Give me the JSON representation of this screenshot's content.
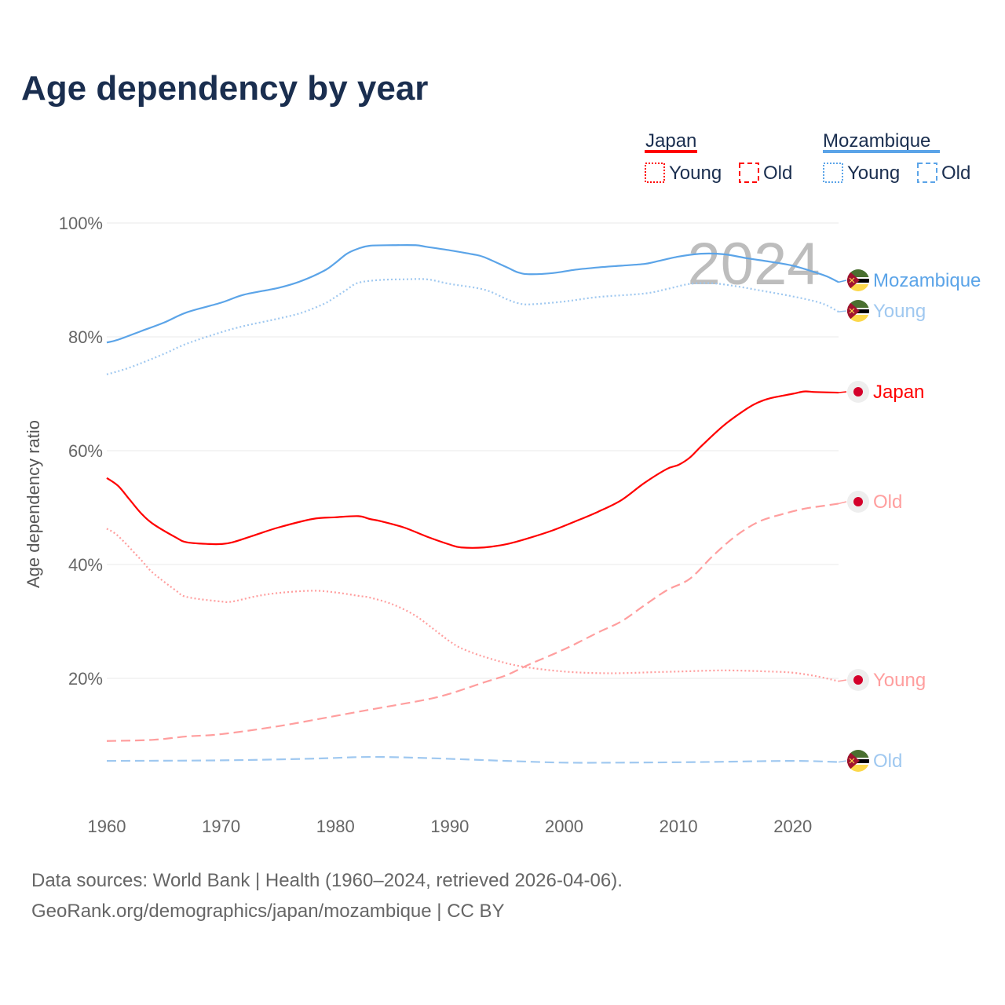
{
  "title": "Age dependency by year",
  "sources": {
    "line1": "Data sources: World Bank | Health (1960–2024, retrieved 2026-04-06).",
    "line2": "GeoRank.org/demographics/japan/mozambique | CC BY"
  },
  "year_watermark": "2024",
  "legend": {
    "groups": [
      {
        "country": "Japan",
        "color": "#ff0000",
        "young": "Young",
        "old": "Old"
      },
      {
        "country": "Mozambique",
        "color": "#5ba4e8",
        "young": "Young",
        "old": "Old"
      }
    ]
  },
  "end_labels": {
    "moz_total": "Mozambique",
    "moz_young": "Young",
    "japan_total": "Japan",
    "japan_old": "Old",
    "japan_young": "Young",
    "moz_old": "Old"
  },
  "chart_data": {
    "type": "line",
    "title": "Age dependency by year",
    "xlabel": "",
    "ylabel": "Age dependency ratio",
    "xlim": [
      1960,
      2024
    ],
    "ylim": [
      0,
      100
    ],
    "xticks": [
      "1960",
      "1970",
      "1980",
      "1990",
      "2000",
      "2010",
      "2020"
    ],
    "yticks": [
      "20%",
      "40%",
      "60%",
      "80%",
      "100%"
    ],
    "grid": true,
    "legend_position": "top-right",
    "series": [
      {
        "name": "Mozambique",
        "key": "moz_total",
        "color": "#5ba4e8",
        "dash": "solid",
        "points": [
          [
            1960,
            79.0
          ],
          [
            1961,
            79.5
          ],
          [
            1963,
            81
          ],
          [
            1965,
            82.5
          ],
          [
            1967,
            84.3
          ],
          [
            1970,
            86
          ],
          [
            1972,
            87.4
          ],
          [
            1975,
            88.6
          ],
          [
            1977,
            89.8
          ],
          [
            1979,
            91.6
          ],
          [
            1980,
            93
          ],
          [
            1981,
            94.6
          ],
          [
            1982,
            95.5
          ],
          [
            1983,
            96.0
          ],
          [
            1985,
            96.1
          ],
          [
            1987,
            96.1
          ],
          [
            1988,
            95.8
          ],
          [
            1990,
            95.2
          ],
          [
            1992,
            94.5
          ],
          [
            1993,
            94
          ],
          [
            1995,
            92.2
          ],
          [
            1996,
            91.3
          ],
          [
            1997,
            91.0
          ],
          [
            1999,
            91.2
          ],
          [
            2001,
            91.8
          ],
          [
            2003,
            92.2
          ],
          [
            2005,
            92.5
          ],
          [
            2007,
            92.8
          ],
          [
            2008,
            93.2
          ],
          [
            2010,
            94.1
          ],
          [
            2012,
            94.6
          ],
          [
            2014,
            94.5
          ],
          [
            2016,
            93.8
          ],
          [
            2018,
            93.2
          ],
          [
            2020,
            92.5
          ],
          [
            2022,
            91.3
          ],
          [
            2023,
            90.6
          ],
          [
            2024,
            89.6
          ]
        ]
      },
      {
        "name": "Mozambique Young",
        "key": "moz_young",
        "color": "#9fc8f0",
        "dash": "dotted",
        "points": [
          [
            1960,
            73.4
          ],
          [
            1962,
            74.6
          ],
          [
            1965,
            77
          ],
          [
            1967,
            78.8
          ],
          [
            1970,
            80.8
          ],
          [
            1972,
            81.9
          ],
          [
            1975,
            83.2
          ],
          [
            1977,
            84.2
          ],
          [
            1979,
            85.8
          ],
          [
            1980,
            87
          ],
          [
            1981,
            88.3
          ],
          [
            1982,
            89.5
          ],
          [
            1984,
            90.0
          ],
          [
            1986,
            90.1
          ],
          [
            1988,
            90.1
          ],
          [
            1990,
            89.3
          ],
          [
            1993,
            88.3
          ],
          [
            1995,
            86.6
          ],
          [
            1996,
            85.9
          ],
          [
            1997,
            85.7
          ],
          [
            2000,
            86.2
          ],
          [
            2003,
            87
          ],
          [
            2007,
            87.6
          ],
          [
            2009,
            88.4
          ],
          [
            2011,
            89.3
          ],
          [
            2013,
            89.4
          ],
          [
            2015,
            88.9
          ],
          [
            2017,
            88.2
          ],
          [
            2020,
            87.1
          ],
          [
            2022,
            86.2
          ],
          [
            2023,
            85.5
          ],
          [
            2024,
            84.4
          ]
        ]
      },
      {
        "name": "Japan",
        "key": "japan_total",
        "color": "#ff0000",
        "dash": "solid",
        "points": [
          [
            1960,
            55.2
          ],
          [
            1961,
            53.8
          ],
          [
            1962,
            51.4
          ],
          [
            1963,
            49
          ],
          [
            1964,
            47.2
          ],
          [
            1966,
            44.8
          ],
          [
            1967,
            43.9
          ],
          [
            1969,
            43.6
          ],
          [
            1970,
            43.6
          ],
          [
            1971,
            43.9
          ],
          [
            1973,
            45.2
          ],
          [
            1975,
            46.5
          ],
          [
            1978,
            48
          ],
          [
            1980,
            48.3
          ],
          [
            1982,
            48.5
          ],
          [
            1983,
            48
          ],
          [
            1984,
            47.6
          ],
          [
            1986,
            46.5
          ],
          [
            1988,
            44.9
          ],
          [
            1990,
            43.5
          ],
          [
            1991,
            43.0
          ],
          [
            1993,
            43.0
          ],
          [
            1995,
            43.6
          ],
          [
            1997,
            44.7
          ],
          [
            1999,
            46
          ],
          [
            2001,
            47.6
          ],
          [
            2003,
            49.3
          ],
          [
            2005,
            51.3
          ],
          [
            2007,
            54.3
          ],
          [
            2009,
            56.8
          ],
          [
            2010,
            57.5
          ],
          [
            2011,
            58.8
          ],
          [
            2012,
            60.8
          ],
          [
            2014,
            64.5
          ],
          [
            2016,
            67.4
          ],
          [
            2017,
            68.5
          ],
          [
            2018,
            69.2
          ],
          [
            2020,
            70
          ],
          [
            2021,
            70.4
          ],
          [
            2022,
            70.3
          ],
          [
            2024,
            70.2
          ]
        ]
      },
      {
        "name": "Japan Young",
        "key": "japan_young",
        "color": "#ff9e9e",
        "dash": "dotted",
        "points": [
          [
            1960,
            46.3
          ],
          [
            1961,
            45
          ],
          [
            1963,
            40.8
          ],
          [
            1964,
            38.6
          ],
          [
            1966,
            35.5
          ],
          [
            1967,
            34.3
          ],
          [
            1970,
            33.5
          ],
          [
            1971,
            33.5
          ],
          [
            1973,
            34.4
          ],
          [
            1975,
            35
          ],
          [
            1978,
            35.4
          ],
          [
            1980,
            35.1
          ],
          [
            1982,
            34.5
          ],
          [
            1983,
            34.2
          ],
          [
            1985,
            33
          ],
          [
            1987,
            31
          ],
          [
            1989,
            28
          ],
          [
            1990,
            26.5
          ],
          [
            1991,
            25.3
          ],
          [
            1993,
            23.8
          ],
          [
            1996,
            22.2
          ],
          [
            2000,
            21.2
          ],
          [
            2004,
            20.9
          ],
          [
            2008,
            21.1
          ],
          [
            2010,
            21.2
          ],
          [
            2014,
            21.4
          ],
          [
            2018,
            21.2
          ],
          [
            2020,
            21
          ],
          [
            2022,
            20.4
          ],
          [
            2024,
            19.5
          ]
        ]
      },
      {
        "name": "Japan Old",
        "key": "japan_old",
        "color": "#ff9e9e",
        "dash": "dashed",
        "points": [
          [
            1960,
            9.0
          ],
          [
            1964,
            9.2
          ],
          [
            1967,
            9.8
          ],
          [
            1970,
            10.2
          ],
          [
            1975,
            11.6
          ],
          [
            1980,
            13.4
          ],
          [
            1983,
            14.5
          ],
          [
            1985,
            15.2
          ],
          [
            1988,
            16.3
          ],
          [
            1990,
            17.3
          ],
          [
            1993,
            19.3
          ],
          [
            1995,
            20.6
          ],
          [
            1997,
            22.5
          ],
          [
            2000,
            25.1
          ],
          [
            2003,
            28.1
          ],
          [
            2005,
            30
          ],
          [
            2007,
            32.8
          ],
          [
            2009,
            35.5
          ],
          [
            2011,
            37.5
          ],
          [
            2013,
            41.5
          ],
          [
            2015,
            45
          ],
          [
            2017,
            47.5
          ],
          [
            2019,
            48.8
          ],
          [
            2021,
            49.8
          ],
          [
            2023,
            50.4
          ],
          [
            2024,
            50.7
          ]
        ]
      },
      {
        "name": "Mozambique Old",
        "key": "moz_old",
        "color": "#9fc8f0",
        "dash": "dashed",
        "points": [
          [
            1960,
            5.5
          ],
          [
            1970,
            5.6
          ],
          [
            1978,
            5.9
          ],
          [
            1983,
            6.2
          ],
          [
            1988,
            6.0
          ],
          [
            1995,
            5.5
          ],
          [
            2000,
            5.2
          ],
          [
            2005,
            5.2
          ],
          [
            2012,
            5.3
          ],
          [
            2020,
            5.5
          ],
          [
            2024,
            5.3
          ]
        ]
      }
    ]
  }
}
